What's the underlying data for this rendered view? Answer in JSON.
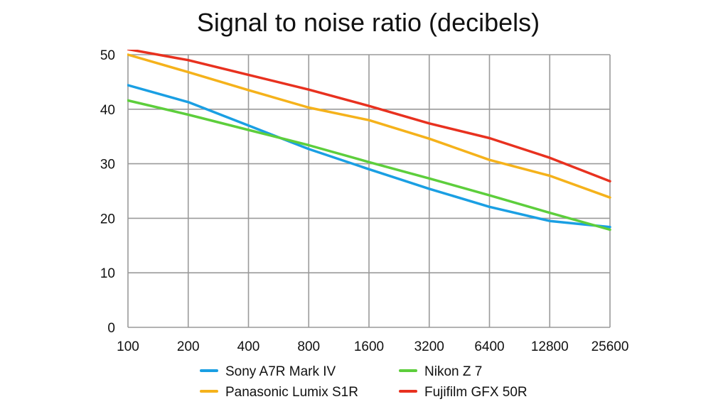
{
  "chart_data": {
    "type": "line",
    "title": "Signal to noise ratio (decibels)",
    "xlabel": "",
    "ylabel": "",
    "categories": [
      "100",
      "200",
      "400",
      "800",
      "1600",
      "3200",
      "6400",
      "12800",
      "25600"
    ],
    "ylim": [
      0,
      50
    ],
    "yticks": [
      0,
      10,
      20,
      30,
      40,
      50
    ],
    "grid": true,
    "legend_position": "bottom",
    "series": [
      {
        "name": "Sony A7R Mark IV",
        "color": "#1a9fe3",
        "values": [
          44.4,
          41.3,
          37.0,
          32.7,
          29.0,
          25.4,
          22.1,
          19.5,
          18.4
        ]
      },
      {
        "name": "Panasonic Lumix S1R",
        "color": "#f5b21b",
        "values": [
          50.0,
          46.8,
          43.5,
          40.3,
          38.0,
          34.6,
          30.7,
          27.8,
          23.8
        ]
      },
      {
        "name": "Nikon Z 7",
        "color": "#5dce3c",
        "values": [
          41.6,
          39.0,
          36.2,
          33.4,
          30.3,
          27.3,
          24.2,
          21.0,
          17.9
        ]
      },
      {
        "name": "Fujifilm GFX 50R",
        "color": "#e8311f",
        "values": [
          51.0,
          49.0,
          46.3,
          43.6,
          40.6,
          37.4,
          34.7,
          31.1,
          26.8
        ]
      }
    ]
  }
}
